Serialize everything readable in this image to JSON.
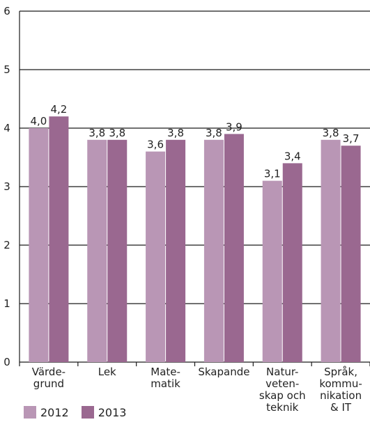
{
  "chart_data": {
    "type": "bar",
    "categories": [
      [
        "Värde-",
        "grund"
      ],
      [
        "Lek"
      ],
      [
        "Mate-",
        "matik"
      ],
      [
        "Skapande"
      ],
      [
        "Natur-",
        "veten-",
        "skap och",
        "teknik"
      ],
      [
        "Språk,",
        "kommu-",
        "nikation",
        "& IT"
      ]
    ],
    "series": [
      {
        "name": "2012",
        "values": [
          4.0,
          3.8,
          3.6,
          3.8,
          3.1,
          3.8
        ],
        "labels": [
          "4,0",
          "3,8",
          "3,6",
          "3,8",
          "3,1",
          "3,8"
        ],
        "color": "#b996b5"
      },
      {
        "name": "2013",
        "values": [
          4.2,
          3.8,
          3.8,
          3.9,
          3.4,
          3.7
        ],
        "labels": [
          "4,2",
          "3,8",
          "3,8",
          "3,9",
          "3,4",
          "3,7"
        ],
        "color": "#9a6890"
      }
    ],
    "ylim": [
      0,
      6
    ],
    "yticks": [
      "0",
      "1",
      "2",
      "3",
      "4",
      "5",
      "6"
    ],
    "grid": true,
    "legend_position": "bottom-left"
  }
}
